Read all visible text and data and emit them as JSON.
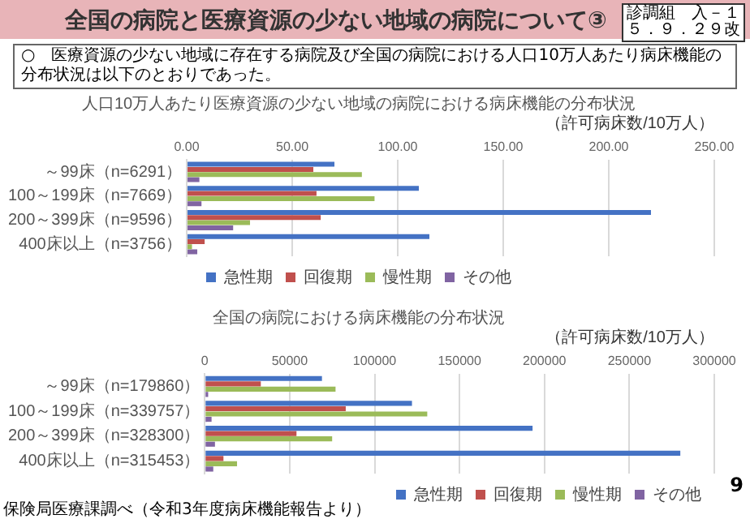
{
  "chart_data": [
    {
      "type": "bar",
      "orientation": "horizontal",
      "title": "人口10万人あたり医療資源の少ない地域の病院における病床機能の分布状況",
      "xlabel": "（許可病床数/10万人）",
      "annotations": [
        "全国の病院と医療資源の少ない地域の病院について③",
        "診調組　入－１",
        "５．９．２９改",
        "○　医療資源の少ない地域に存在する病院及び全国の病院における人口10万人あたり病床機能の分布状況は以下のとおりであった。"
      ],
      "categories": [
        "～99床（n=6291）",
        "100～199床（n=7669）",
        "200～399床（n=9596）",
        "400床以上（n=3756）"
      ],
      "series": [
        {
          "name": "急性期",
          "color": "#4472c4",
          "values": [
            70,
            110,
            220,
            115
          ]
        },
        {
          "name": "回復期",
          "color": "#c0504d",
          "values": [
            60,
            61.5,
            63.5,
            8.5
          ]
        },
        {
          "name": "慢性期",
          "color": "#9bbb59",
          "values": [
            83,
            89,
            30,
            2.5
          ]
        },
        {
          "name": "その他",
          "color": "#8064a2",
          "values": [
            6,
            7,
            22,
            5
          ]
        }
      ],
      "xlim": [
        0,
        250
      ],
      "xticks": [
        {
          "value": 0,
          "label": "0.00"
        },
        {
          "value": 50,
          "label": "50.00"
        },
        {
          "value": 100,
          "label": "100.00"
        },
        {
          "value": 150,
          "label": "150.00"
        },
        {
          "value": 200,
          "label": "200.00"
        },
        {
          "value": 250,
          "label": "250.00"
        }
      ],
      "grid": "x",
      "legend": "bottom"
    },
    {
      "type": "bar",
      "orientation": "horizontal",
      "title": "全国の病院における病床機能の分布状況",
      "xlabel": "（許可病床数/10万人）",
      "annotations": [
        "保険局医療課調べ（令和3年度病床機能報告より）",
        "9"
      ],
      "categories": [
        "～99床（n=179860）",
        "100～199床（n=339757）",
        "200～399床（n=328300）",
        "400床以上（n=315453）"
      ],
      "series": [
        {
          "name": "急性期",
          "color": "#4472c4",
          "values": [
            69000,
            122000,
            193000,
            280000
          ]
        },
        {
          "name": "回復期",
          "color": "#c0504d",
          "values": [
            33000,
            83000,
            54000,
            11000
          ]
        },
        {
          "name": "慢性期",
          "color": "#9bbb59",
          "values": [
            77000,
            131000,
            75000,
            19000
          ]
        },
        {
          "name": "その他",
          "color": "#8064a2",
          "values": [
            2000,
            4000,
            6000,
            5000
          ]
        }
      ],
      "xlim": [
        0,
        300000
      ],
      "xticks": [
        0,
        50000,
        100000,
        150000,
        200000,
        250000,
        300000
      ],
      "grid": "x",
      "legend": "bottom"
    }
  ]
}
